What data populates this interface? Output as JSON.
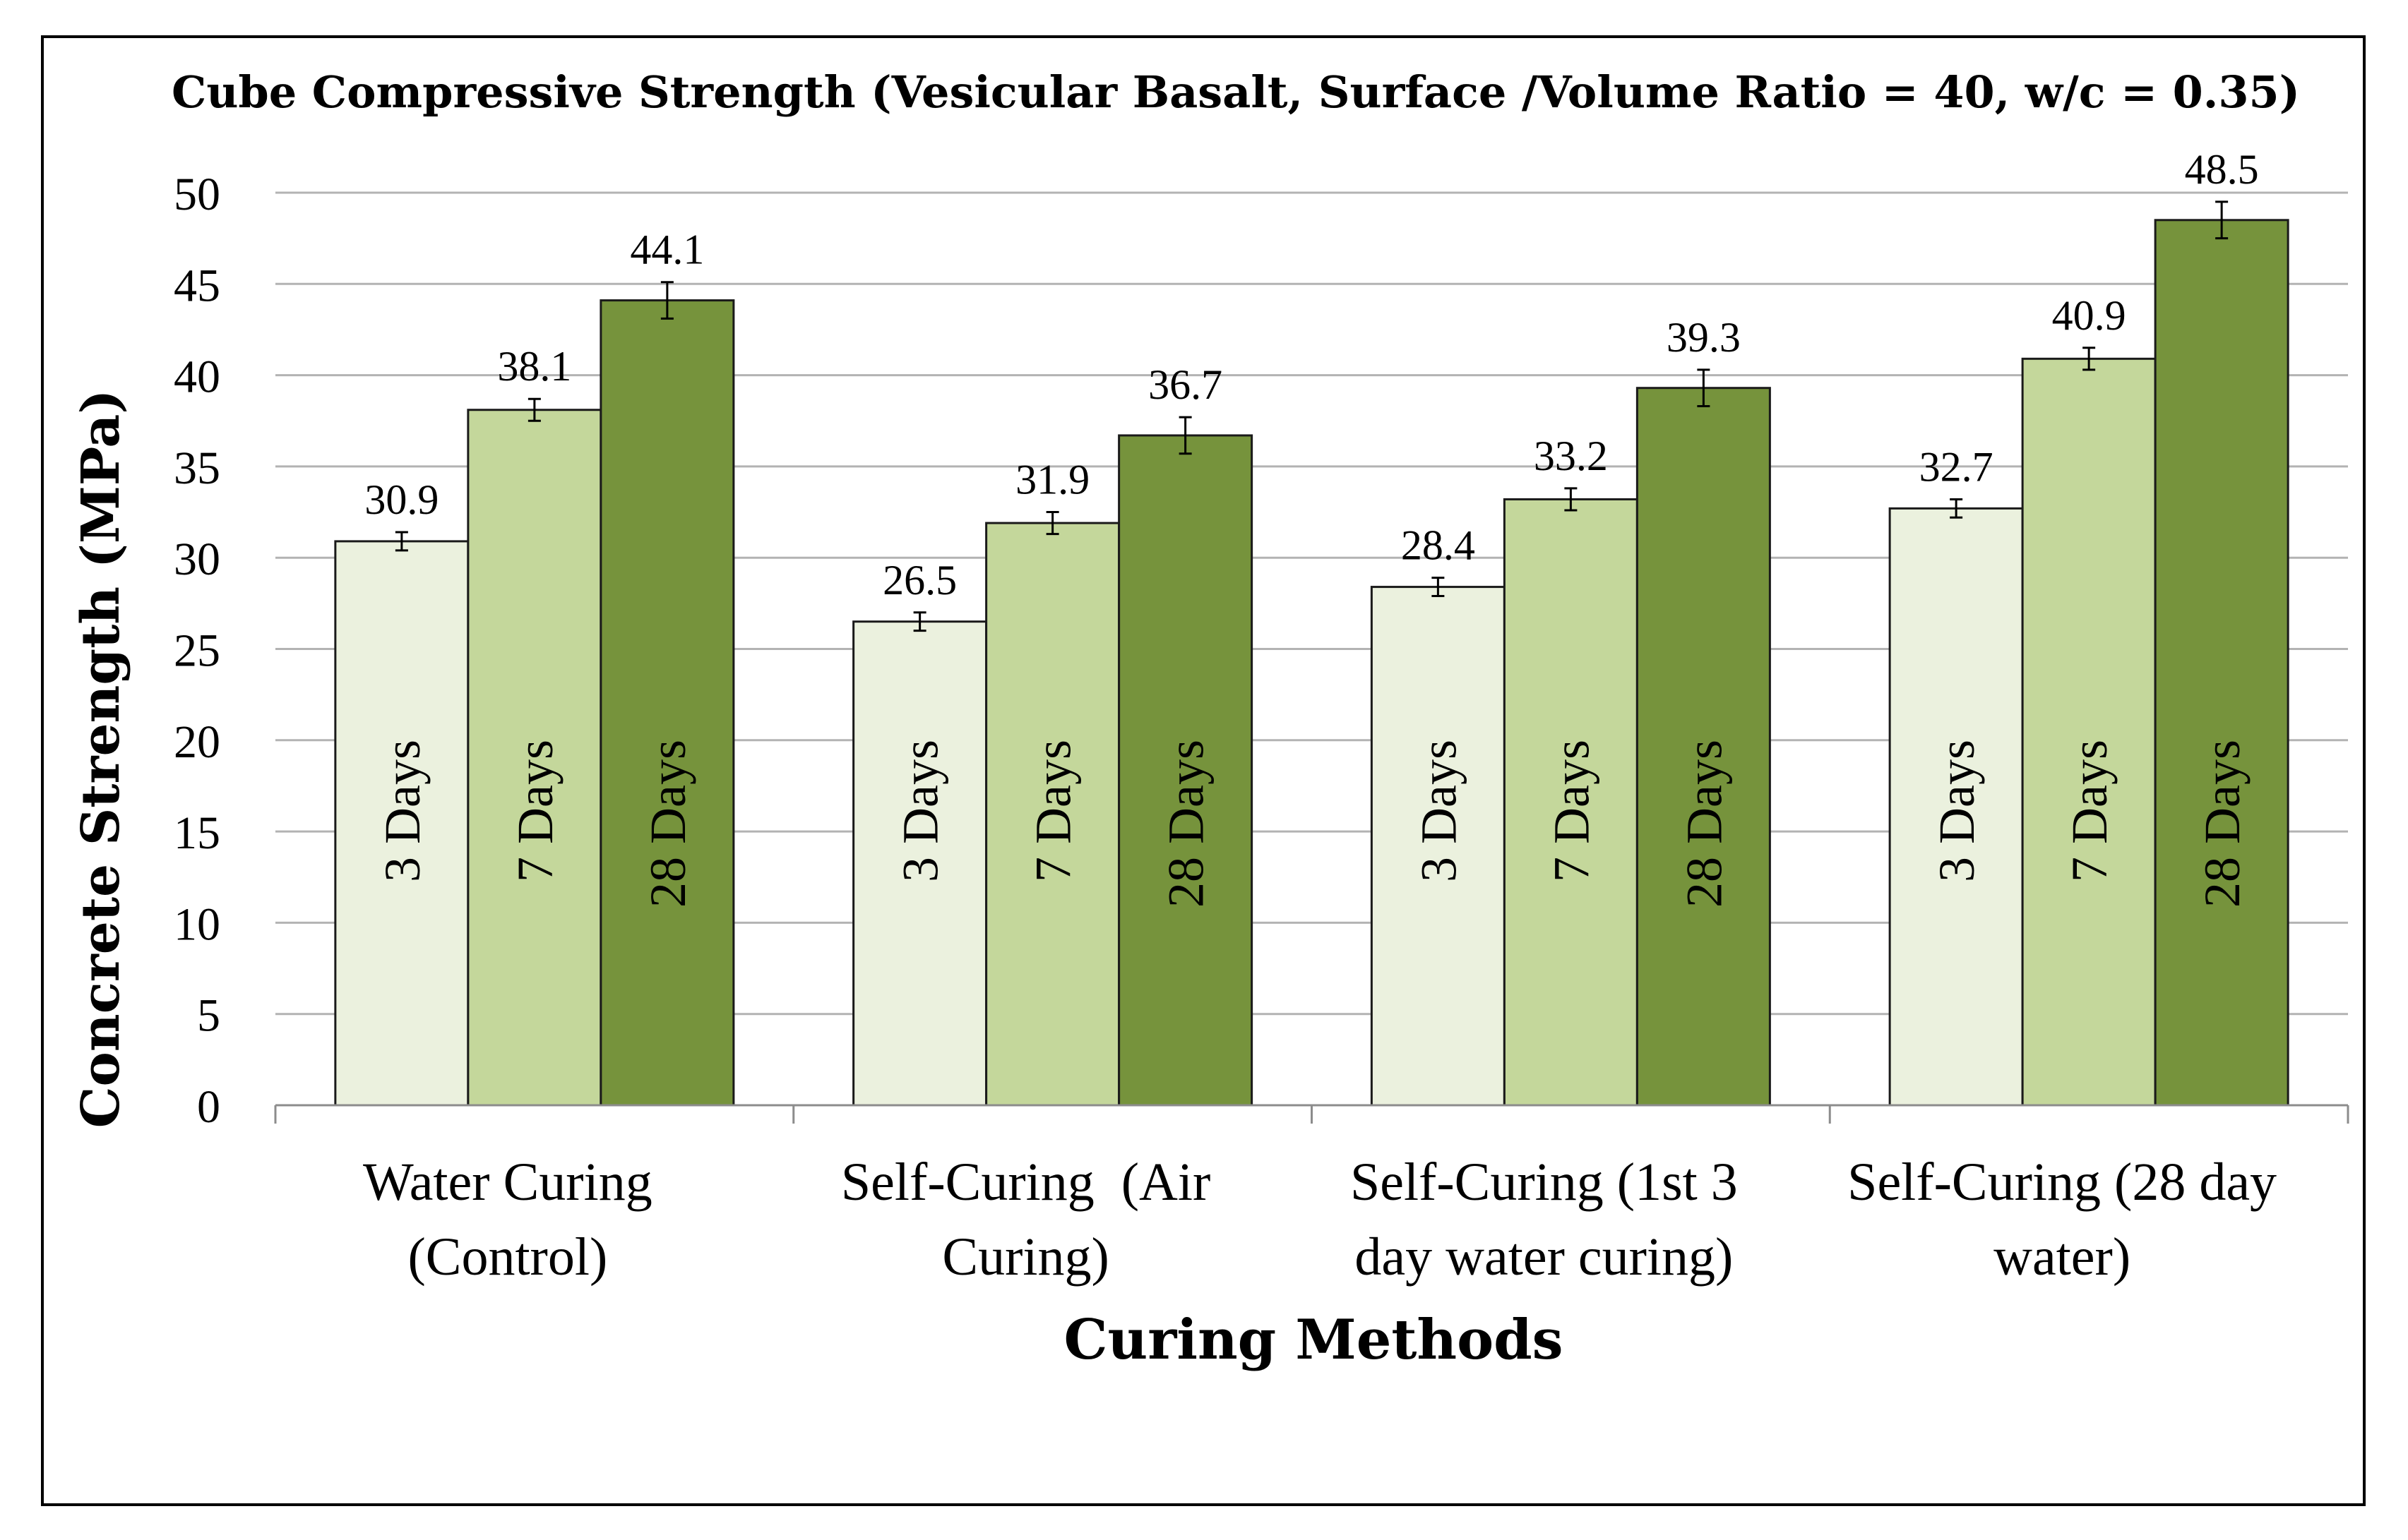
{
  "chart_data": {
    "type": "bar",
    "title": "Cube Compressive Strength (Vesicular Basalt, Surface /Volume Ratio = 40, w/c = 0.35)",
    "xlabel": "Curing Methods",
    "ylabel": "Concrete Strength (MPa)",
    "ylim": [
      0,
      50
    ],
    "yticks": [
      "0",
      "5",
      "10",
      "15",
      "20",
      "25",
      "30",
      "35",
      "40",
      "45",
      "50"
    ],
    "grid": true,
    "legend": "none",
    "categories": [
      [
        "Water Curing",
        "(Control)"
      ],
      [
        "Self-Curing  (Air",
        "Curing)"
      ],
      [
        "Self-Curing (1st 3",
        "day water curing)"
      ],
      [
        "Self-Curing (28 day",
        "water)"
      ]
    ],
    "series": [
      {
        "name": "3 Days",
        "color": "#ebf1de",
        "values": [
          30.9,
          26.5,
          28.4,
          32.7
        ],
        "errors": [
          0.5,
          0.5,
          0.5,
          0.5
        ],
        "value_labels": [
          "30.9",
          "26.5",
          "28.4",
          "32.7"
        ]
      },
      {
        "name": "7 Days",
        "color": "#c4d79b",
        "values": [
          38.1,
          31.9,
          33.2,
          40.9
        ],
        "errors": [
          0.6,
          0.6,
          0.6,
          0.6
        ],
        "value_labels": [
          "38.1",
          "31.9",
          "33.2",
          "40.9"
        ]
      },
      {
        "name": "28 Days",
        "color": "#76933c",
        "values": [
          44.1,
          36.7,
          39.3,
          48.5
        ],
        "errors": [
          1.0,
          1.0,
          1.0,
          1.0
        ],
        "value_labels": [
          "44.1",
          "36.7",
          "39.3",
          "48.5"
        ]
      }
    ]
  }
}
